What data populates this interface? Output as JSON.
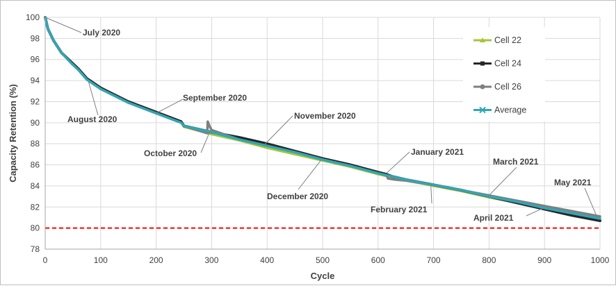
{
  "chart_data": {
    "type": "line",
    "xlabel": "Cycle",
    "ylabel": "Capacity Retention (%)",
    "xlim": [
      0,
      1000
    ],
    "ylim": [
      78,
      100
    ],
    "x_ticks": [
      "0",
      "100",
      "200",
      "300",
      "400",
      "500",
      "600",
      "700",
      "800",
      "900",
      "1000"
    ],
    "y_ticks": [
      "78",
      "80",
      "82",
      "84",
      "86",
      "88",
      "90",
      "92",
      "94",
      "96",
      "98",
      "100"
    ],
    "grid": "horizontal and vertical",
    "legend_position": "top-right",
    "threshold_line": {
      "y": 80,
      "color": "#ff0000",
      "style": "dashed"
    },
    "series": [
      {
        "name": "Cell 22",
        "color": "#a4c639",
        "marker": "triangle",
        "points": [
          [
            0,
            100
          ],
          [
            5,
            98.9
          ],
          [
            15,
            97.8
          ],
          [
            30,
            96.6
          ],
          [
            48,
            95.6
          ],
          [
            60,
            95.0
          ],
          [
            75,
            94.1
          ],
          [
            100,
            93.2
          ],
          [
            150,
            91.9
          ],
          [
            200,
            90.9
          ],
          [
            245,
            90.0
          ],
          [
            250,
            89.6
          ],
          [
            300,
            88.9
          ],
          [
            350,
            88.3
          ],
          [
            400,
            87.6
          ],
          [
            450,
            87.0
          ],
          [
            500,
            86.4
          ],
          [
            550,
            85.8
          ],
          [
            600,
            85.1
          ],
          [
            650,
            84.5
          ],
          [
            700,
            84.0
          ],
          [
            750,
            83.5
          ],
          [
            800,
            82.9
          ],
          [
            850,
            82.4
          ],
          [
            900,
            81.8
          ],
          [
            950,
            81.3
          ],
          [
            1000,
            80.8
          ]
        ]
      },
      {
        "name": "Cell 24",
        "color": "#262626",
        "marker": "square",
        "points": [
          [
            0,
            100
          ],
          [
            5,
            98.9
          ],
          [
            15,
            97.8
          ],
          [
            30,
            96.6
          ],
          [
            48,
            95.7
          ],
          [
            60,
            95.1
          ],
          [
            75,
            94.2
          ],
          [
            100,
            93.3
          ],
          [
            150,
            92.0
          ],
          [
            200,
            91.0
          ],
          [
            245,
            90.1
          ],
          [
            250,
            89.7
          ],
          [
            300,
            89.1
          ],
          [
            350,
            88.6
          ],
          [
            400,
            88.0
          ],
          [
            450,
            87.3
          ],
          [
            500,
            86.6
          ],
          [
            550,
            86.0
          ],
          [
            600,
            85.3
          ],
          [
            615,
            85.1
          ],
          [
            625,
            84.9
          ],
          [
            650,
            84.6
          ],
          [
            700,
            84.1
          ],
          [
            750,
            83.6
          ],
          [
            800,
            83.0
          ],
          [
            850,
            82.4
          ],
          [
            900,
            81.8
          ],
          [
            950,
            81.2
          ],
          [
            1000,
            80.7
          ]
        ]
      },
      {
        "name": "Cell 26",
        "color": "#7f7f7f",
        "marker": "circle",
        "points": [
          [
            0,
            100
          ],
          [
            5,
            98.9
          ],
          [
            15,
            97.8
          ],
          [
            30,
            96.6
          ],
          [
            48,
            95.6
          ],
          [
            60,
            95.0
          ],
          [
            75,
            94.1
          ],
          [
            100,
            93.2
          ],
          [
            150,
            91.9
          ],
          [
            200,
            90.9
          ],
          [
            245,
            90.0
          ],
          [
            250,
            89.7
          ],
          [
            292,
            89.0
          ],
          [
            293,
            90.1
          ],
          [
            297,
            89.6
          ],
          [
            300,
            89.3
          ],
          [
            350,
            88.4
          ],
          [
            400,
            87.8
          ],
          [
            450,
            87.2
          ],
          [
            500,
            86.5
          ],
          [
            550,
            85.9
          ],
          [
            600,
            85.2
          ],
          [
            615,
            85.0
          ],
          [
            618,
            84.7
          ],
          [
            630,
            84.6
          ],
          [
            650,
            84.5
          ],
          [
            700,
            84.1
          ],
          [
            750,
            83.6
          ],
          [
            800,
            83.1
          ],
          [
            850,
            82.6
          ],
          [
            900,
            82.1
          ],
          [
            950,
            81.6
          ],
          [
            1000,
            81.1
          ]
        ]
      },
      {
        "name": "Average",
        "color": "#31a6b4",
        "marker": "cross",
        "points": [
          [
            0,
            100
          ],
          [
            5,
            98.9
          ],
          [
            15,
            97.8
          ],
          [
            30,
            96.6
          ],
          [
            48,
            95.6
          ],
          [
            60,
            95.0
          ],
          [
            75,
            94.1
          ],
          [
            100,
            93.2
          ],
          [
            150,
            91.9
          ],
          [
            200,
            90.9
          ],
          [
            245,
            90.0
          ],
          [
            250,
            89.7
          ],
          [
            300,
            89.1
          ],
          [
            350,
            88.4
          ],
          [
            400,
            87.8
          ],
          [
            450,
            87.2
          ],
          [
            500,
            86.5
          ],
          [
            550,
            85.9
          ],
          [
            600,
            85.2
          ],
          [
            650,
            84.6
          ],
          [
            700,
            84.1
          ],
          [
            750,
            83.6
          ],
          [
            800,
            83.0
          ],
          [
            850,
            82.5
          ],
          [
            900,
            81.9
          ],
          [
            950,
            81.4
          ],
          [
            1000,
            80.9
          ]
        ]
      }
    ],
    "annotations": [
      {
        "text": "July 2020",
        "x": 0,
        "y": 100
      },
      {
        "text": "August 2020",
        "x": 78,
        "y": 93.9
      },
      {
        "text": "September 2020",
        "x": 200,
        "y": 90.9
      },
      {
        "text": "October 2020",
        "x": 298,
        "y": 89.3
      },
      {
        "text": "November 2020",
        "x": 395,
        "y": 87.9
      },
      {
        "text": "December 2020",
        "x": 498,
        "y": 86.5
      },
      {
        "text": "January 2021",
        "x": 615,
        "y": 85.2
      },
      {
        "text": "February 2021",
        "x": 695,
        "y": 84.2
      },
      {
        "text": "March 2021",
        "x": 798,
        "y": 83.0
      },
      {
        "text": "April 2021",
        "x": 898,
        "y": 81.9
      },
      {
        "text": "May 2021",
        "x": 995,
        "y": 81.0
      }
    ]
  }
}
